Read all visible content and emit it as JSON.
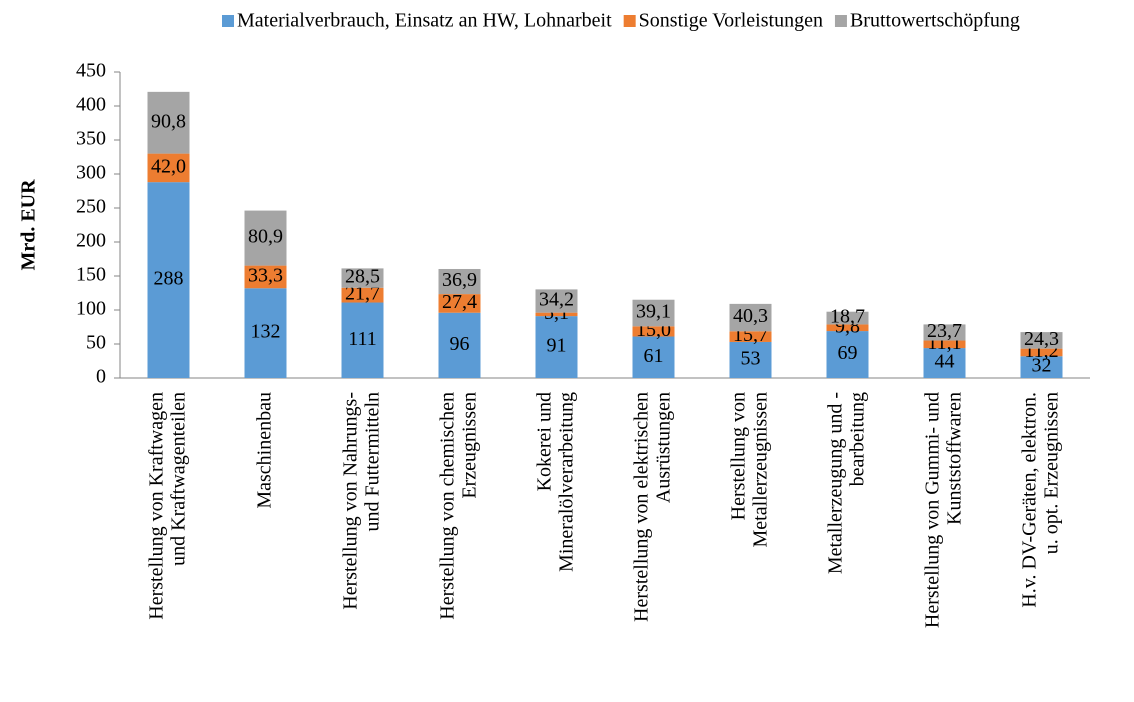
{
  "chart_data": {
    "type": "stacked_bar",
    "y_label": "Mrd. EUR",
    "categories": [
      "Herstellung von Kraftwagen\nund Kraftwagenteilen",
      "Maschinenbau",
      "Herstellung von Nahrungs-\nund Futtermitteln",
      "Herstellung von chemischen\nErzeugnissen",
      "Kokerei und\nMineralölverarbeitung",
      "Herstellung von elektrischen\nAusrüstungen",
      "Herstellung von\nMetallerzeugnissen",
      "Metallerzeugung und -\nbearbeitung",
      "Herstellung von Gummi- und\nKunststoffwaren",
      "H.v. DV-Geräten, elektron.\nu. opt. Erzeugnissen"
    ],
    "series": [
      {
        "name": "Materialverbrauch, Einsatz an HW, Lohnarbeit",
        "color": "#5b9bd5",
        "values": [
          288,
          132,
          111,
          96,
          91,
          61,
          53,
          69,
          44,
          32
        ]
      },
      {
        "name": "Sonstige Vorleistungen",
        "color": "#ed7d31",
        "values": [
          42.0,
          33.3,
          21.7,
          27.4,
          5.1,
          15.0,
          15.7,
          9.8,
          11.1,
          11.2
        ],
        "value_labels": [
          "42,0",
          "33,3",
          "21,7",
          "27,4",
          "5,1",
          "15,0",
          "15,7",
          "9,8",
          "11,1",
          "11,2"
        ]
      },
      {
        "name": "Bruttowertschöpfung",
        "color": "#a5a5a5",
        "values": [
          90.8,
          80.9,
          28.5,
          36.9,
          34.2,
          39.1,
          40.3,
          18.7,
          23.7,
          24.3
        ],
        "value_labels": [
          "90,8",
          "80,9",
          "28,5",
          "36,9",
          "34,2",
          "39,1",
          "40,3",
          "18,7",
          "23,7",
          "24,3"
        ]
      }
    ],
    "ylim": [
      0,
      450
    ],
    "yticks": [
      0,
      50,
      100,
      150,
      200,
      250,
      300,
      350,
      400,
      450
    ],
    "legend": "top",
    "grid": false
  }
}
